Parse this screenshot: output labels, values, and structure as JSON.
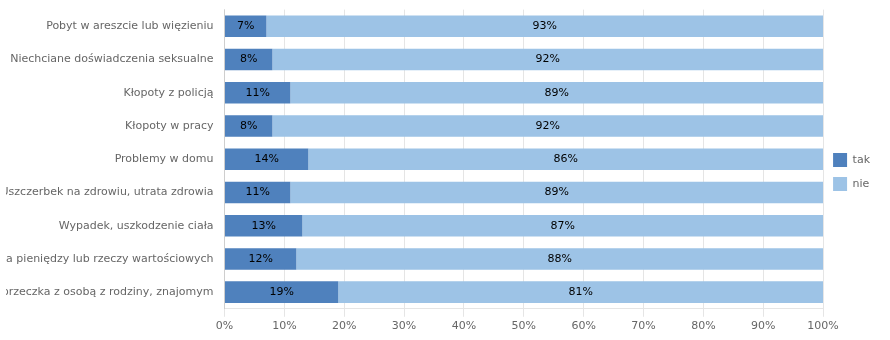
{
  "chart_data": {
    "type": "bar",
    "orientation": "horizontal",
    "stacked": true,
    "categories": [
      "Pobyt w areszcie lub więzieniu",
      "Niechciane doświadczenia seksualne",
      "Kłopoty z policją",
      "Kłopoty w pracy",
      "Problemy w domu",
      "Uszczerbek na zdrowiu, utrata zdrowia",
      "Wypadek, uszkodzenie ciała",
      "Utrata pieniędzy lub rzeczy wartościowych",
      "Kłótnia lub sprzeczka z osobą z rodziny, znajomym"
    ],
    "series": [
      {
        "name": "tak",
        "color": "#4F81BD",
        "values": [
          7,
          8,
          11,
          8,
          14,
          11,
          13,
          12,
          19
        ],
        "value_labels": [
          "7%",
          "8%",
          "11%",
          "8%",
          "14%",
          "11%",
          "13%",
          "12%",
          "19%"
        ]
      },
      {
        "name": "nie",
        "color": "#9DC3E6",
        "values": [
          93,
          92,
          89,
          92,
          86,
          89,
          87,
          88,
          81
        ],
        "value_labels": [
          "93%",
          "92%",
          "89%",
          "92%",
          "86%",
          "89%",
          "87%",
          "88%",
          "81%"
        ]
      }
    ],
    "xlim": [
      0,
      100
    ],
    "xticks": [
      {
        "value": 0,
        "label": "0%"
      },
      {
        "value": 10,
        "label": "10%"
      },
      {
        "value": 20,
        "label": "20%"
      },
      {
        "value": 30,
        "label": "30%"
      },
      {
        "value": 40,
        "label": "40%"
      },
      {
        "value": 50,
        "label": "50%"
      },
      {
        "value": 60,
        "label": "60%"
      },
      {
        "value": 70,
        "label": "70%"
      },
      {
        "value": 80,
        "label": "80%"
      },
      {
        "value": 90,
        "label": "90%"
      },
      {
        "value": 100,
        "label": "100%"
      }
    ],
    "grid": true,
    "legend": "right",
    "data_labels": true
  }
}
